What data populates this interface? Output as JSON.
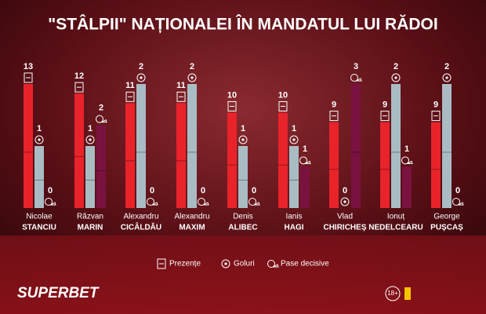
{
  "chart_data": {
    "type": "bar",
    "title": "\"STÂLPII\" NAȚIONALEI ÎN MANDATUL LUI RĂDOI",
    "categories": [
      [
        "Nicolae",
        "STANCIU"
      ],
      [
        "Răzvan",
        "MARIN"
      ],
      [
        "Alexandru",
        "CICÂLDĂU"
      ],
      [
        "Alexandru",
        "MAXIM"
      ],
      [
        "Denis",
        "ALIBEC"
      ],
      [
        "Ianis",
        "HAGI"
      ],
      [
        "Vlad",
        "CHIRICHEȘ"
      ],
      [
        "Ionuț",
        "NEDELCEARU"
      ],
      [
        "George",
        "PUȘCAȘ"
      ]
    ],
    "series": [
      {
        "name": "Prezențe",
        "color": "#e8232a",
        "values": [
          13,
          12,
          11,
          11,
          10,
          10,
          9,
          9,
          9
        ]
      },
      {
        "name": "Goluri",
        "color": "#a9bcc4",
        "values": [
          1,
          1,
          2,
          2,
          1,
          1,
          0,
          2,
          2
        ]
      },
      {
        "name": "Pase decisive",
        "color": "#7a1240",
        "values": [
          0,
          2,
          0,
          0,
          0,
          1,
          3,
          1,
          0
        ]
      }
    ],
    "legend": "bottom",
    "brand": "SUPERBET",
    "age_badge": "18+"
  }
}
